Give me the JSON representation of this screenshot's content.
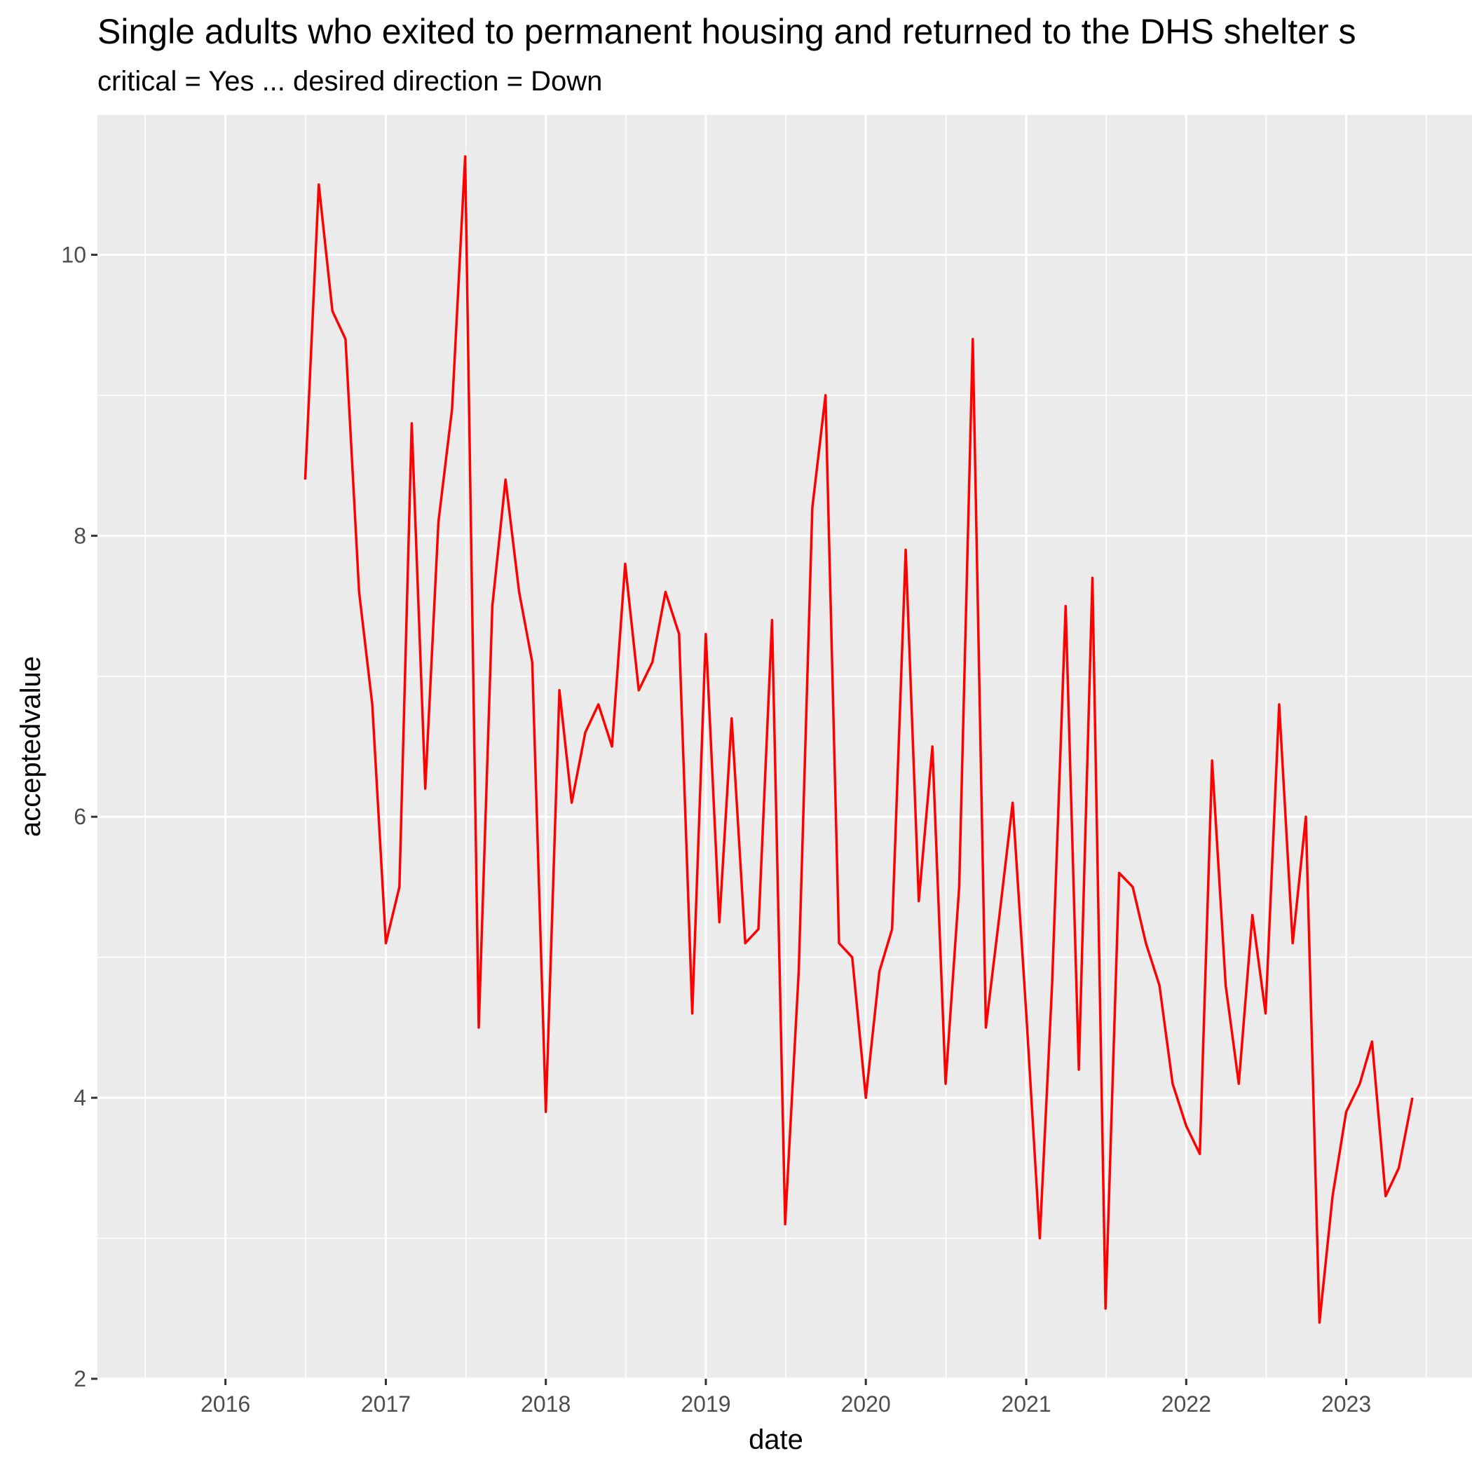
{
  "chart_data": {
    "type": "line",
    "title": "Single adults who exited to permanent housing and returned to the DHS shelter s",
    "subtitle": "critical = Yes ... desired direction = Down",
    "xlabel": "date",
    "ylabel": "acceptedvalue",
    "x_ticks": [
      "2016",
      "2017",
      "2018",
      "2019",
      "2020",
      "2021",
      "2022",
      "2023"
    ],
    "y_ticks": [
      "2",
      "4",
      "6",
      "8",
      "10"
    ],
    "xlim": [
      "2015-03-15",
      "2023-10-15"
    ],
    "ylim": [
      2,
      11
    ],
    "grid": true,
    "legend": "none",
    "colors": {
      "line": "#ff0000",
      "panel_background": "#ebebeb",
      "grid": "#ffffff"
    },
    "series": [
      {
        "x": [
          "2016-07",
          "2016-08",
          "2016-09",
          "2016-10",
          "2016-11",
          "2016-12",
          "2017-01",
          "2017-02",
          "2017-03",
          "2017-04",
          "2017-05",
          "2017-06",
          "2017-07",
          "2017-08",
          "2017-09",
          "2017-10",
          "2017-11",
          "2017-12",
          "2018-01",
          "2018-02",
          "2018-03",
          "2018-04",
          "2018-05",
          "2018-06",
          "2018-07",
          "2018-08",
          "2018-09",
          "2018-10",
          "2018-11",
          "2018-12",
          "2019-01",
          "2019-02",
          "2019-03",
          "2019-04",
          "2019-05",
          "2019-06",
          "2019-07",
          "2019-08",
          "2019-09",
          "2019-10",
          "2019-11",
          "2019-12",
          "2020-01",
          "2020-02",
          "2020-03",
          "2020-04",
          "2020-05",
          "2020-06",
          "2020-07",
          "2020-08",
          "2020-09",
          "2020-10",
          "2020-11",
          "2020-12",
          "2021-01",
          "2021-02",
          "2021-03",
          "2021-04",
          "2021-05",
          "2021-06",
          "2021-07",
          "2021-08",
          "2021-09",
          "2021-10",
          "2021-11",
          "2021-12",
          "2022-01",
          "2022-02",
          "2022-03",
          "2022-04",
          "2022-05",
          "2022-06",
          "2022-07",
          "2022-08",
          "2022-09",
          "2022-10",
          "2022-11",
          "2022-12",
          "2023-01",
          "2023-02",
          "2023-03",
          "2023-04",
          "2023-05",
          "2023-06"
        ],
        "y": [
          8.4,
          10.5,
          9.6,
          9.4,
          7.6,
          6.8,
          5.1,
          5.5,
          8.8,
          6.2,
          8.1,
          8.9,
          10.7,
          4.5,
          7.5,
          8.4,
          7.6,
          7.1,
          3.9,
          6.9,
          6.1,
          6.6,
          6.8,
          6.5,
          7.8,
          6.9,
          7.1,
          7.6,
          7.3,
          4.6,
          7.3,
          5.25,
          6.7,
          5.1,
          5.2,
          7.4,
          3.1,
          4.9,
          8.2,
          9.0,
          5.1,
          5.0,
          4.0,
          4.9,
          5.2,
          7.9,
          5.4,
          6.5,
          4.1,
          5.5,
          9.4,
          4.5,
          5.3,
          6.1,
          4.6,
          3.0,
          4.8,
          7.5,
          4.2,
          7.7,
          2.5,
          5.6,
          5.5,
          5.1,
          4.8,
          4.1,
          3.8,
          3.6,
          6.4,
          4.8,
          4.1,
          5.3,
          4.6,
          6.8,
          5.1,
          6.0,
          2.4,
          3.3,
          3.9,
          4.1,
          4.4,
          3.3,
          3.5,
          4.0
        ]
      }
    ]
  }
}
